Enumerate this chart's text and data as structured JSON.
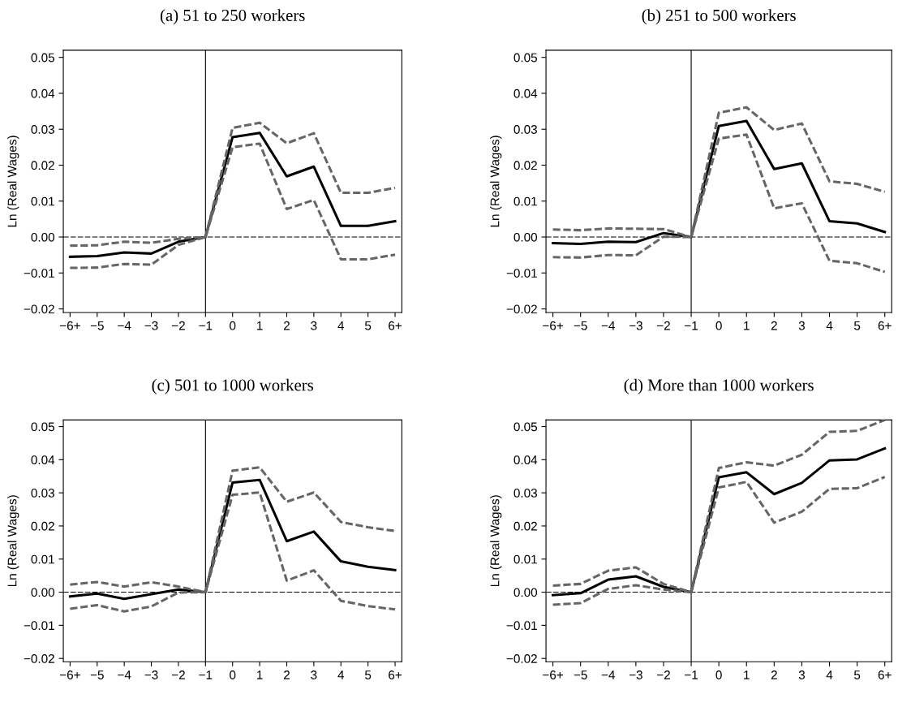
{
  "chart_data": [
    {
      "type": "line",
      "title": "(a) 51 to 250 workers",
      "ylabel": "Ln (Real Wages)",
      "categories": [
        "−6+",
        "−5",
        "−4",
        "−3",
        "−2",
        "−1",
        "0",
        "1",
        "2",
        "3",
        "4",
        "5",
        "6+"
      ],
      "ylim": [
        -0.021,
        0.052
      ],
      "yticks": [
        {
          "value": -0.02,
          "label": "−0.02"
        },
        {
          "value": -0.01,
          "label": "−0.01"
        },
        {
          "value": 0,
          "label": "0.00"
        },
        {
          "value": 0.01,
          "label": "0.01"
        },
        {
          "value": 0.02,
          "label": "0.02"
        },
        {
          "value": 0.03,
          "label": "0.03"
        },
        {
          "value": 0.04,
          "label": "0.04"
        },
        {
          "value": 0.05,
          "label": "0.05"
        }
      ],
      "grid": false,
      "ref_lines": [
        {
          "axis": "x",
          "value": "−1",
          "color": "#000000",
          "line_style": "solid"
        },
        {
          "axis": "y",
          "value": 0,
          "color": "#000000",
          "line_style": "dashed"
        }
      ],
      "series": [
        {
          "color": "#000000",
          "line_style": "solid",
          "values": [
            -0.0055,
            -0.0053,
            -0.0043,
            -0.0046,
            -0.0013,
            0,
            0.0278,
            0.029,
            0.0169,
            0.0196,
            0.0031,
            0.0031,
            0.0044
          ]
        },
        {
          "color": "#666666",
          "line_style": "dashed",
          "values": [
            -0.0024,
            -0.0023,
            -0.0013,
            -0.0016,
            -0.0005,
            0,
            0.0304,
            0.0318,
            0.0261,
            0.0289,
            0.0123,
            0.0123,
            0.0137
          ]
        },
        {
          "color": "#666666",
          "line_style": "dashed",
          "values": [
            -0.0086,
            -0.0085,
            -0.0075,
            -0.0077,
            -0.0022,
            0,
            0.025,
            0.026,
            0.0078,
            0.0103,
            -0.0062,
            -0.0062,
            -0.0049
          ]
        }
      ]
    },
    {
      "type": "line",
      "title": "(b) 251 to 500 workers",
      "ylabel": "Ln (Real Wages)",
      "categories": [
        "−6+",
        "−5",
        "−4",
        "−3",
        "−2",
        "−1",
        "0",
        "1",
        "2",
        "3",
        "4",
        "5",
        "6+"
      ],
      "ylim": [
        -0.021,
        0.052
      ],
      "yticks": [
        {
          "value": -0.02,
          "label": "−0.02"
        },
        {
          "value": -0.01,
          "label": "−0.01"
        },
        {
          "value": 0,
          "label": "0.00"
        },
        {
          "value": 0.01,
          "label": "0.01"
        },
        {
          "value": 0.02,
          "label": "0.02"
        },
        {
          "value": 0.03,
          "label": "0.03"
        },
        {
          "value": 0.04,
          "label": "0.04"
        },
        {
          "value": 0.05,
          "label": "0.05"
        }
      ],
      "grid": false,
      "ref_lines": [
        {
          "axis": "x",
          "value": "−1",
          "color": "#000000",
          "line_style": "solid"
        },
        {
          "axis": "y",
          "value": 0,
          "color": "#000000",
          "line_style": "dashed"
        }
      ],
      "series": [
        {
          "color": "#000000",
          "line_style": "solid",
          "values": [
            -0.0017,
            -0.0019,
            -0.0013,
            -0.0014,
            0.0011,
            0,
            0.0309,
            0.0323,
            0.0189,
            0.0205,
            0.0044,
            0.0038,
            0.0014
          ]
        },
        {
          "color": "#666666",
          "line_style": "dashed",
          "values": [
            0.0021,
            0.0019,
            0.0024,
            0.0023,
            0.0022,
            0,
            0.0346,
            0.0361,
            0.0298,
            0.0316,
            0.0155,
            0.0148,
            0.0126
          ]
        },
        {
          "color": "#666666",
          "line_style": "dashed",
          "values": [
            -0.0056,
            -0.0057,
            -0.005,
            -0.0051,
            0.0001,
            0,
            0.0274,
            0.0285,
            0.008,
            0.0094,
            -0.0066,
            -0.0073,
            -0.0097
          ]
        }
      ]
    },
    {
      "type": "line",
      "title": "(c) 501 to 1000 workers",
      "ylabel": "Ln (Real Wages)",
      "categories": [
        "−6+",
        "−5",
        "−4",
        "−3",
        "−2",
        "−1",
        "0",
        "1",
        "2",
        "3",
        "4",
        "5",
        "6+"
      ],
      "ylim": [
        -0.021,
        0.052
      ],
      "yticks": [
        {
          "value": -0.02,
          "label": "−0.02"
        },
        {
          "value": -0.01,
          "label": "−0.01"
        },
        {
          "value": 0,
          "label": "0.00"
        },
        {
          "value": 0.01,
          "label": "0.01"
        },
        {
          "value": 0.02,
          "label": "0.02"
        },
        {
          "value": 0.03,
          "label": "0.03"
        },
        {
          "value": 0.04,
          "label": "0.04"
        },
        {
          "value": 0.05,
          "label": "0.05"
        }
      ],
      "grid": false,
      "ref_lines": [
        {
          "axis": "x",
          "value": "−1",
          "color": "#000000",
          "line_style": "solid"
        },
        {
          "axis": "y",
          "value": 0,
          "color": "#000000",
          "line_style": "dashed"
        }
      ],
      "series": [
        {
          "color": "#000000",
          "line_style": "solid",
          "values": [
            -0.0013,
            -0.0004,
            -0.002,
            -0.0006,
            0.0008,
            0,
            0.0331,
            0.0339,
            0.0154,
            0.0183,
            0.0093,
            0.0077,
            0.0067
          ]
        },
        {
          "color": "#666666",
          "line_style": "dashed",
          "values": [
            0.0023,
            0.0031,
            0.0017,
            0.003,
            0.0017,
            0,
            0.0367,
            0.0377,
            0.0273,
            0.0301,
            0.0212,
            0.0196,
            0.0185
          ]
        },
        {
          "color": "#666666",
          "line_style": "dashed",
          "values": [
            -0.005,
            -0.0039,
            -0.0058,
            -0.0043,
            -0.0001,
            0,
            0.0294,
            0.0301,
            0.0035,
            0.0066,
            -0.0026,
            -0.0042,
            -0.0052
          ]
        }
      ]
    },
    {
      "type": "line",
      "title": "(d) More than 1000 workers",
      "ylabel": "Ln (Real Wages)",
      "categories": [
        "−6+",
        "−5",
        "−4",
        "−3",
        "−2",
        "−1",
        "0",
        "1",
        "2",
        "3",
        "4",
        "5",
        "6+"
      ],
      "ylim": [
        -0.021,
        0.052
      ],
      "yticks": [
        {
          "value": -0.02,
          "label": "−0.02"
        },
        {
          "value": -0.01,
          "label": "−0.01"
        },
        {
          "value": 0,
          "label": "0.00"
        },
        {
          "value": 0.01,
          "label": "0.01"
        },
        {
          "value": 0.02,
          "label": "0.02"
        },
        {
          "value": 0.03,
          "label": "0.03"
        },
        {
          "value": 0.04,
          "label": "0.04"
        },
        {
          "value": 0.05,
          "label": "0.05"
        }
      ],
      "grid": false,
      "ref_lines": [
        {
          "axis": "x",
          "value": "−1",
          "color": "#000000",
          "line_style": "solid"
        },
        {
          "axis": "y",
          "value": 0,
          "color": "#000000",
          "line_style": "dashed"
        }
      ],
      "series": [
        {
          "color": "#000000",
          "line_style": "solid",
          "values": [
            -0.0009,
            -0.0003,
            0.0038,
            0.0048,
            0.0016,
            0,
            0.0347,
            0.0362,
            0.0296,
            0.033,
            0.0398,
            0.0401,
            0.0434
          ]
        },
        {
          "color": "#666666",
          "line_style": "dashed",
          "values": [
            0.002,
            0.0025,
            0.0065,
            0.0075,
            0.0025,
            0,
            0.0375,
            0.0392,
            0.0382,
            0.0415,
            0.0484,
            0.0487,
            0.052
          ]
        },
        {
          "color": "#666666",
          "line_style": "dashed",
          "values": [
            -0.0038,
            -0.0033,
            0.001,
            0.0021,
            0.0008,
            0,
            0.0316,
            0.0333,
            0.021,
            0.0243,
            0.0312,
            0.0314,
            0.0348
          ]
        }
      ]
    }
  ]
}
